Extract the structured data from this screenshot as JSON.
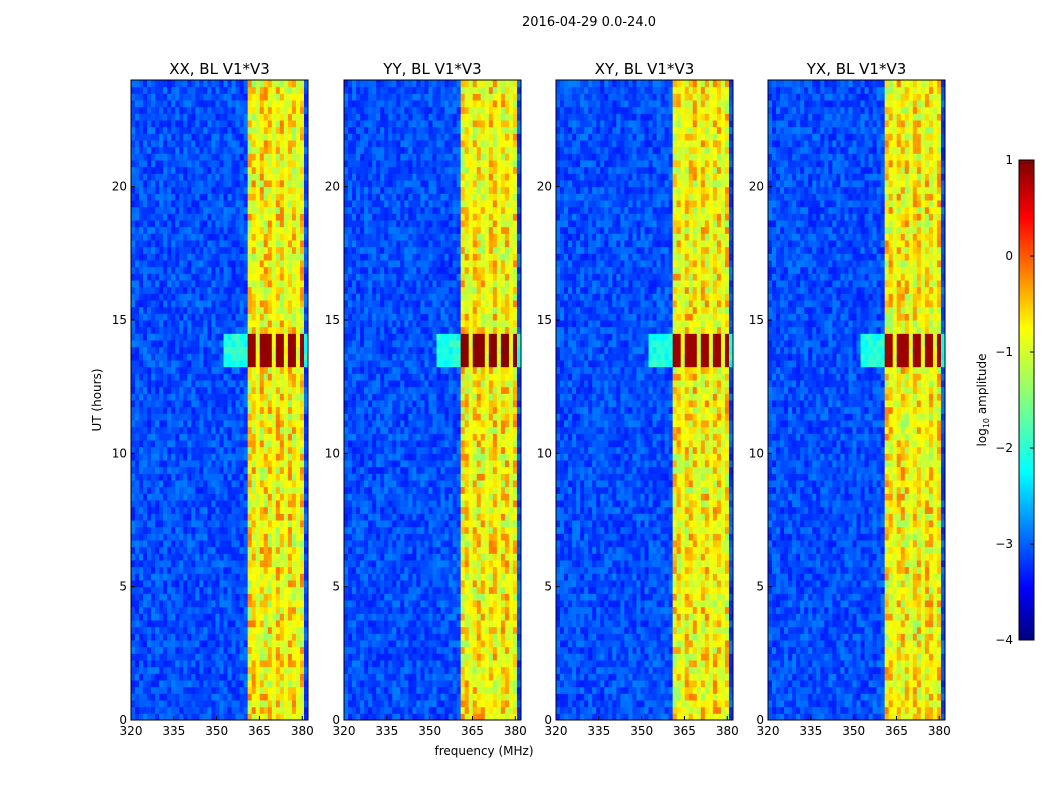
{
  "chart_data": {
    "type": "heatmap",
    "suptitle": "2016-04-29 0.0-24.0",
    "xlabel": "frequency (MHz)",
    "ylabel": "UT (hours)",
    "xlim": [
      320,
      382
    ],
    "ylim": [
      0,
      24
    ],
    "xticks": [
      320,
      335,
      350,
      365,
      380
    ],
    "yticks": [
      0,
      5,
      10,
      15,
      20
    ],
    "panels": [
      {
        "title": "XX, BL V1*V3",
        "peak_band": [
          13.3,
          14.4
        ],
        "peak_level": 0.9
      },
      {
        "title": "YY, BL V1*V3",
        "peak_band": [
          13.3,
          14.4
        ],
        "peak_level": 0.95
      },
      {
        "title": "XY, BL V1*V3",
        "peak_band": [
          13.3,
          14.4
        ],
        "peak_level": 0.85
      },
      {
        "title": "YX, BL V1*V3",
        "peak_band": [
          13.3,
          14.4
        ],
        "peak_level": 0.85
      }
    ],
    "bright_band_mhz": [
      360.5,
      380
    ],
    "band_gap_mhz": [
      364.5,
      369.5,
      374.5,
      378.5
    ],
    "background_level": -3.0,
    "colorbar": {
      "label": "log10 amplitude",
      "label_main": "log",
      "label_sub": "10",
      "label_rest": " amplitude",
      "range": [
        -4,
        1
      ],
      "ticks": [
        1,
        0,
        -1,
        -2,
        -3,
        -4
      ],
      "tick_labels": [
        "1",
        "0",
        "−1",
        "−2",
        "−3",
        "−4"
      ]
    }
  }
}
